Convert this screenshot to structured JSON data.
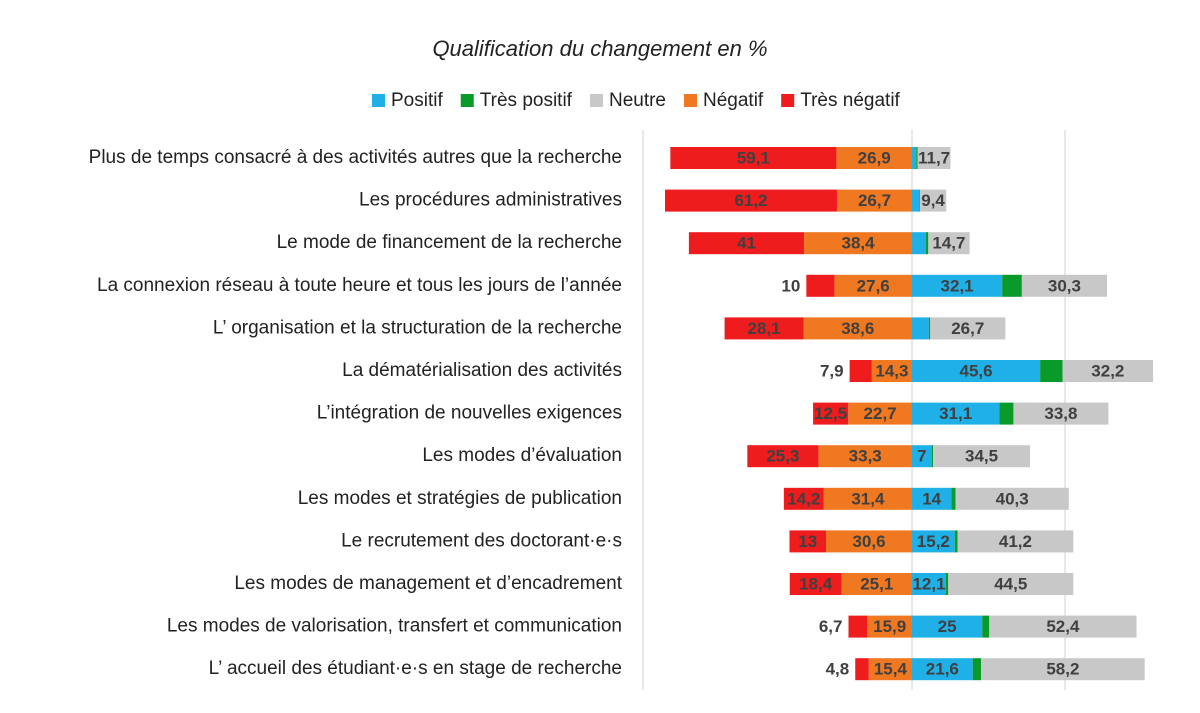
{
  "chart_data": {
    "type": "diverging-bar",
    "title": "Qualification du changement en %",
    "categories": [
      "Plus de temps consacré à des activités autres que la recherche",
      "Les procédures administratives",
      "Le mode de financement de la recherche",
      "La connexion réseau à toute heure et tous les jours de l’année",
      "L’ organisation et la structuration de la recherche",
      "La dématérialisation des activités",
      "L’intégration de nouvelles exigences",
      "Les modes d’évaluation",
      "Les modes et stratégies de publication",
      "Le recrutement des doctorant·e·s",
      "Les modes de management et d’encadrement",
      "Les modes de valorisation, transfert et communication",
      "L’ accueil des étudiant·e·s en stage de recherche"
    ],
    "series": [
      {
        "name": "Positif",
        "color": "#1fb0e8",
        "side": "right",
        "values": [
          1.5,
          2.5,
          5,
          32.1,
          6,
          45.6,
          31.1,
          7,
          14,
          15.2,
          12.1,
          25,
          21.6
        ],
        "value_labels": [
          null,
          null,
          null,
          "32,1",
          null,
          "45,6",
          "31,1",
          "7",
          "14",
          "15,2",
          "12,1",
          "25",
          "21,6"
        ]
      },
      {
        "name": "Très positif",
        "color": "#0a9a2a",
        "side": "right",
        "values": [
          0.5,
          0.3,
          0.8,
          7,
          0.5,
          8,
          5,
          0.5,
          1.5,
          1,
          0.8,
          2.5,
          3
        ],
        "value_labels": [
          null,
          null,
          null,
          null,
          null,
          null,
          null,
          null,
          null,
          null,
          null,
          null,
          null
        ]
      },
      {
        "name": "Neutre",
        "color": "#c8c8c8",
        "side": "right",
        "values": [
          11.7,
          9.4,
          14.7,
          30.3,
          26.7,
          32.2,
          33.8,
          34.5,
          40.3,
          41.2,
          44.5,
          52.4,
          58.2
        ],
        "value_labels": [
          "11,7",
          "9,4",
          "14,7",
          "30,3",
          "26,7",
          "32,2",
          "33,8",
          "34,5",
          "40,3",
          "41,2",
          "44,5",
          "52,4",
          "58,2"
        ]
      },
      {
        "name": "Négatif",
        "color": "#f07820",
        "side": "left",
        "values": [
          26.9,
          26.7,
          38.4,
          27.6,
          38.6,
          14.3,
          22.7,
          33.3,
          31.4,
          30.6,
          25.1,
          15.9,
          15.4
        ],
        "value_labels": [
          "26,9",
          "26,7",
          "38,4",
          "27,6",
          "38,6",
          "14,3",
          "22,7",
          "33,3",
          "31,4",
          "30,6",
          "25,1",
          "15,9",
          "15,4"
        ]
      },
      {
        "name": "Très négatif",
        "color": "#ee1c1c",
        "side": "left",
        "values": [
          59.1,
          61.2,
          41,
          10,
          28.1,
          7.9,
          12.5,
          25.3,
          14.2,
          13,
          18.4,
          6.7,
          4.8
        ],
        "value_labels": [
          "59,1",
          "61,2",
          "41",
          "10",
          "28,1",
          "7,9",
          "12,5",
          "25,3",
          "14,2",
          "13",
          "18,4",
          "6,7",
          "4,8"
        ]
      }
    ]
  }
}
